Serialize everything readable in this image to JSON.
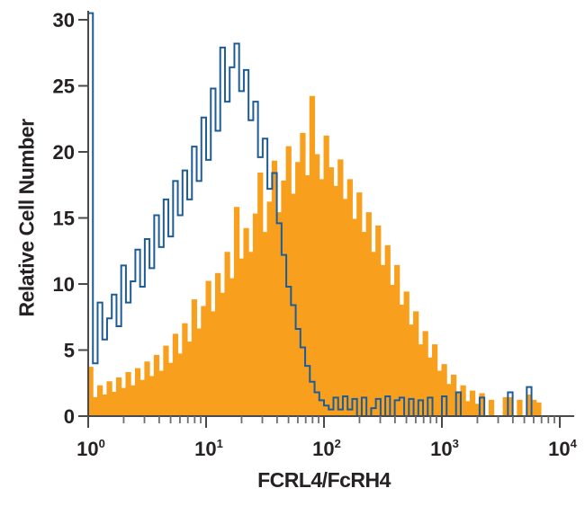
{
  "figure": {
    "x_axis": {
      "label": "FCRL4/FcRH4",
      "scale": "log",
      "major_tick_base": "10",
      "major_tick_exponents": [
        "0",
        "1",
        "2",
        "3",
        "4"
      ]
    },
    "y_axis": {
      "label": "Relative Cell Number",
      "min": 0,
      "max": 30,
      "ticks": [
        0,
        5,
        10,
        15,
        20,
        25,
        30
      ]
    }
  },
  "chart_data": {
    "type": "area",
    "subtype": "flow-cytometry step histogram overlay",
    "title": "",
    "xlabel": "FCRL4/FcRH4",
    "ylabel": "Relative Cell Number",
    "xlim_exponents": [
      0,
      4
    ],
    "ylim": [
      0,
      30
    ],
    "grid": false,
    "legend": "none",
    "x_log_bins": {
      "start_exponent": 0,
      "end_exponent": 4,
      "bin_width_decades": 0.04
    },
    "series": [
      {
        "name": "filled-orange-histogram (FCRL4/FcRH4 stained)",
        "style": "filled",
        "color": "#F8A01D",
        "values": [
          3.7,
          1.4,
          2.3,
          1.6,
          2.6,
          1.8,
          2.9,
          2.1,
          3.3,
          2.3,
          3.6,
          2.7,
          4.1,
          3.0,
          4.6,
          3.4,
          5.3,
          4.0,
          6.2,
          4.7,
          7.0,
          5.6,
          8.8,
          6.6,
          8.3,
          10.2,
          7.9,
          10.8,
          9.3,
          12.4,
          10.4,
          15.8,
          11.9,
          14.2,
          12.4,
          15.3,
          18.4,
          13.9,
          16.2,
          19.3,
          15.4,
          17.8,
          20.4,
          16.8,
          19.2,
          21.4,
          18.2,
          24.2,
          19.8,
          17.9,
          21.2,
          18.8,
          17.4,
          19.4,
          16.4,
          17.9,
          14.9,
          16.9,
          13.9,
          15.4,
          12.4,
          14.4,
          11.4,
          12.9,
          9.9,
          11.4,
          8.4,
          9.4,
          6.9,
          7.9,
          5.4,
          6.4,
          4.4,
          5.4,
          3.4,
          3.9,
          2.4,
          3.1,
          1.7,
          2.3,
          1.1,
          1.9,
          0.9,
          1.7,
          0,
          1.2,
          0,
          0,
          1.4,
          1.4,
          0,
          1.2,
          0,
          1.6,
          1.2,
          1.0,
          0,
          0,
          0,
          0
        ]
      },
      {
        "name": "open-blue-histogram (control)",
        "style": "open",
        "color": "#1E5C97",
        "values": [
          30.5,
          4.0,
          8.6,
          5.8,
          7.4,
          9.2,
          6.8,
          11.4,
          8.6,
          10.2,
          12.6,
          9.8,
          13.4,
          11.2,
          15.2,
          12.8,
          16.4,
          13.6,
          17.8,
          15.2,
          18.6,
          16.4,
          20.4,
          17.8,
          22.6,
          19.4,
          24.8,
          21.6,
          27.9,
          23.8,
          26.4,
          28.2,
          24.6,
          26.2,
          22.4,
          23.8,
          19.6,
          21.0,
          17.2,
          18.4,
          14.6,
          12.2,
          9.8,
          8.4,
          6.6,
          5.2,
          3.8,
          2.6,
          1.8,
          1.2,
          0.8,
          0.5,
          1.4,
          0.5,
          1.5,
          0.5,
          1.3,
          0,
          1.4,
          0,
          0.6,
          1.3,
          0,
          1.5,
          0,
          1.2,
          1.4,
          0,
          1.3,
          0,
          1.2,
          0,
          1.4,
          0,
          0,
          1.5,
          0,
          0,
          1.8,
          0,
          0,
          0,
          0,
          1.4,
          0,
          0,
          0,
          0,
          0,
          1.8,
          0,
          0,
          0,
          2.2,
          0,
          0,
          0,
          0,
          0,
          0
        ]
      }
    ],
    "colors": {
      "axis": "#4A4A4A",
      "tick": "#6E6E6E",
      "text": "#262122"
    }
  }
}
